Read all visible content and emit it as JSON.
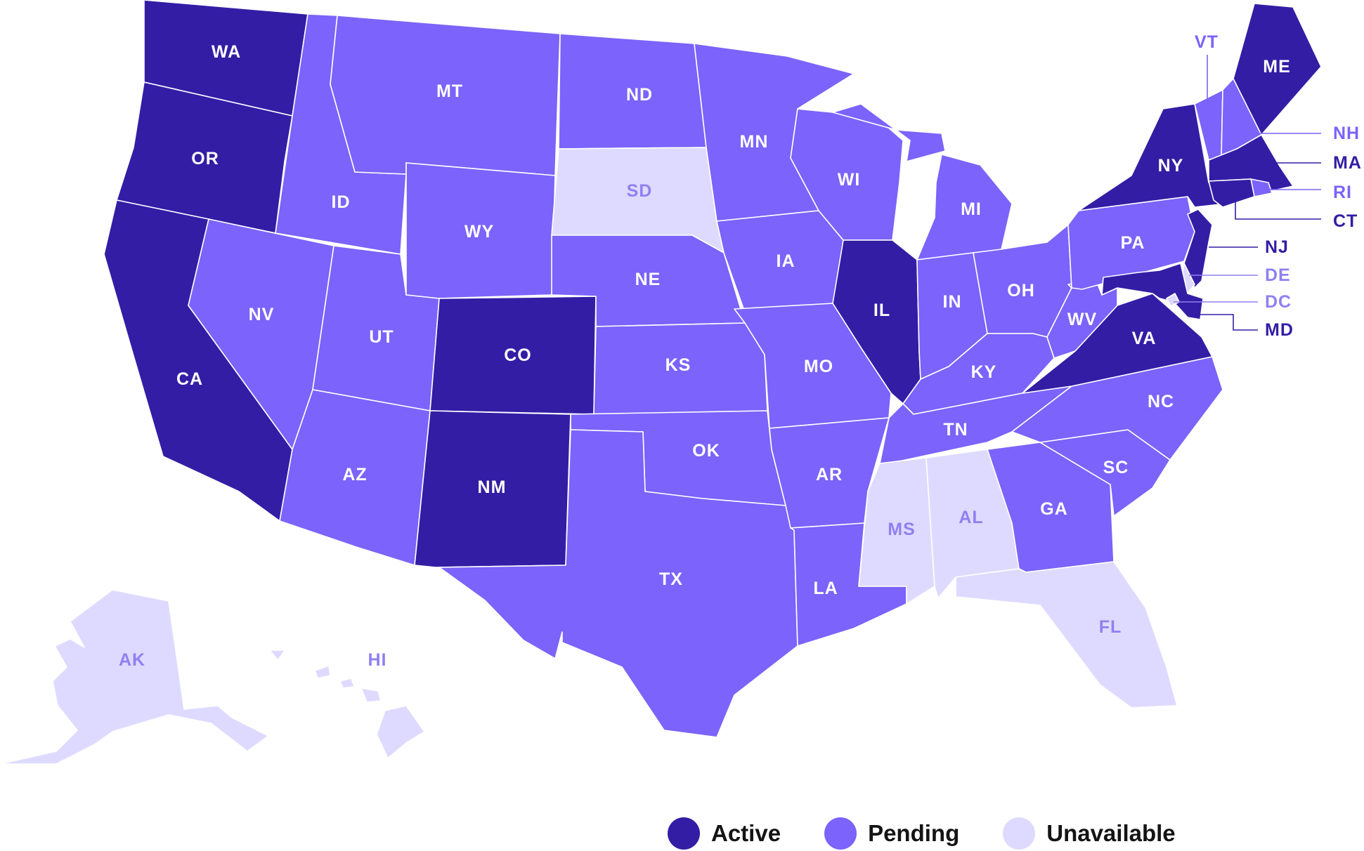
{
  "colors": {
    "active": "#331da5",
    "pending": "#7b63fb",
    "unavailable": "#dedaff",
    "label_on_dark": "#ffffff",
    "label_on_light": "#8f80f2"
  },
  "legend": [
    {
      "key": "active",
      "label": "Active"
    },
    {
      "key": "pending",
      "label": "Pending"
    },
    {
      "key": "unavailable",
      "label": "Unavailable"
    }
  ],
  "states": {
    "WA": {
      "label": "WA",
      "status": "active"
    },
    "OR": {
      "label": "OR",
      "status": "active"
    },
    "CA": {
      "label": "CA",
      "status": "active"
    },
    "ID": {
      "label": "ID",
      "status": "pending"
    },
    "MT": {
      "label": "MT",
      "status": "pending"
    },
    "NV": {
      "label": "NV",
      "status": "pending"
    },
    "UT": {
      "label": "UT",
      "status": "pending"
    },
    "WY": {
      "label": "WY",
      "status": "pending"
    },
    "AZ": {
      "label": "AZ",
      "status": "pending"
    },
    "CO": {
      "label": "CO",
      "status": "active"
    },
    "NM": {
      "label": "NM",
      "status": "active"
    },
    "ND": {
      "label": "ND",
      "status": "pending"
    },
    "SD": {
      "label": "SD",
      "status": "unavailable"
    },
    "NE": {
      "label": "NE",
      "status": "pending"
    },
    "KS": {
      "label": "KS",
      "status": "pending"
    },
    "OK": {
      "label": "OK",
      "status": "pending"
    },
    "TX": {
      "label": "TX",
      "status": "pending"
    },
    "MN": {
      "label": "MN",
      "status": "pending"
    },
    "IA": {
      "label": "IA",
      "status": "pending"
    },
    "MO": {
      "label": "MO",
      "status": "pending"
    },
    "AR": {
      "label": "AR",
      "status": "pending"
    },
    "LA": {
      "label": "LA",
      "status": "pending"
    },
    "WI": {
      "label": "WI",
      "status": "pending"
    },
    "IL": {
      "label": "IL",
      "status": "active"
    },
    "MI": {
      "label": "MI",
      "status": "pending"
    },
    "IN": {
      "label": "IN",
      "status": "pending"
    },
    "OH": {
      "label": "OH",
      "status": "pending"
    },
    "KY": {
      "label": "KY",
      "status": "pending"
    },
    "TN": {
      "label": "TN",
      "status": "pending"
    },
    "MS": {
      "label": "MS",
      "status": "unavailable"
    },
    "AL": {
      "label": "AL",
      "status": "unavailable"
    },
    "GA": {
      "label": "GA",
      "status": "pending"
    },
    "FL": {
      "label": "FL",
      "status": "unavailable"
    },
    "SC": {
      "label": "SC",
      "status": "pending"
    },
    "NC": {
      "label": "NC",
      "status": "pending"
    },
    "VA": {
      "label": "VA",
      "status": "active"
    },
    "WV": {
      "label": "WV",
      "status": "pending"
    },
    "PA": {
      "label": "PA",
      "status": "pending"
    },
    "NY": {
      "label": "NY",
      "status": "active"
    },
    "VT": {
      "label": "VT",
      "status": "pending"
    },
    "NH": {
      "label": "NH",
      "status": "pending"
    },
    "ME": {
      "label": "ME",
      "status": "active"
    },
    "MA": {
      "label": "MA",
      "status": "active"
    },
    "RI": {
      "label": "RI",
      "status": "pending"
    },
    "CT": {
      "label": "CT",
      "status": "active"
    },
    "NJ": {
      "label": "NJ",
      "status": "active"
    },
    "DE": {
      "label": "DE",
      "status": "unavailable"
    },
    "DC": {
      "label": "DC",
      "status": "unavailable"
    },
    "MD": {
      "label": "MD",
      "status": "active"
    },
    "AK": {
      "label": "AK",
      "status": "unavailable"
    },
    "HI": {
      "label": "HI",
      "status": "unavailable"
    }
  }
}
